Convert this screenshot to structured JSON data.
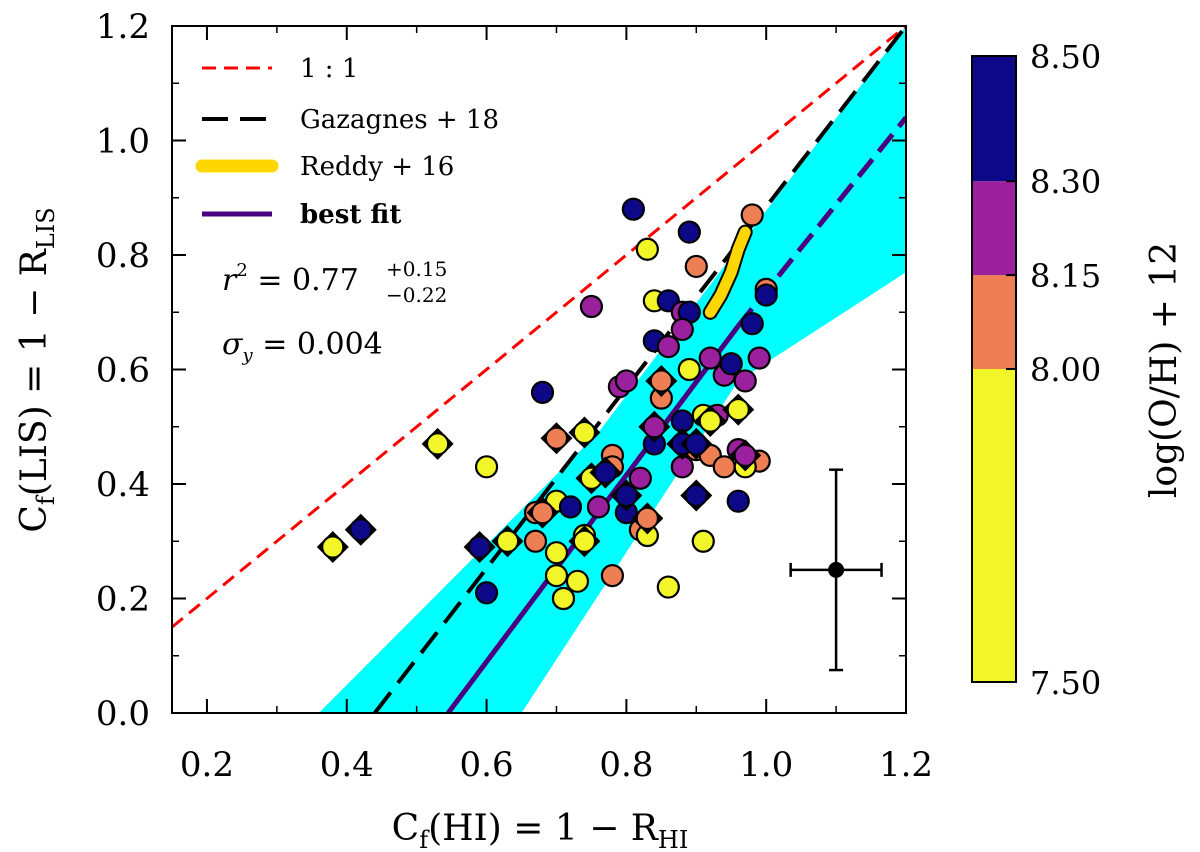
{
  "chart_data": {
    "type": "scatter",
    "xlabel": "C_f(HI) = 1 − R_HI",
    "ylabel": "C_f(LIS) = 1 − R_LIS",
    "xlim": [
      0.15,
      1.2
    ],
    "ylim": [
      0.0,
      1.2
    ],
    "xticks": [
      0.2,
      0.4,
      0.6,
      0.8,
      1.0,
      1.2
    ],
    "yticks": [
      0.0,
      0.2,
      0.4,
      0.6,
      0.8,
      1.0,
      1.2
    ],
    "xtick_labels": [
      "0.2",
      "0.4",
      "0.6",
      "0.8",
      "1.0",
      "1.2"
    ],
    "ytick_labels": [
      "0.0",
      "0.2",
      "0.4",
      "0.6",
      "0.8",
      "1.0",
      "1.2"
    ],
    "axis_label_parts": {
      "x": {
        "main": "C",
        "sub1": "f",
        "rest": "(HI) = 1 − R",
        "sub2": "HI"
      },
      "y": {
        "main": "C",
        "sub1": "f",
        "rest": "(LIS) = 1 − R",
        "sub2": "LIS"
      }
    },
    "legend": {
      "placement": "top-left",
      "entries": [
        {
          "label": "1 : 1",
          "style": "dashed",
          "color": "#ff0000"
        },
        {
          "label": "Gazagnes + 18",
          "style": "dashed",
          "color": "#000000"
        },
        {
          "label": "Reddy + 16",
          "style": "solid-thick",
          "color": "#ffd700"
        },
        {
          "label": "best fit",
          "style": "solid",
          "color": "#4b0082"
        }
      ]
    },
    "annotations": {
      "r2_prefix": "r",
      "r2_exp": "2",
      "r2_value": " = 0.77",
      "r2_plus": "+0.15",
      "r2_minus": "−0.22",
      "sigma_symbol": "σ",
      "sigma_sub": "y",
      "sigma_value": " = 0.004"
    },
    "lines": {
      "one_to_one": {
        "x": [
          0.15,
          1.2
        ],
        "y": [
          0.15,
          1.2
        ],
        "color": "#ff0000"
      },
      "gazagnes18": {
        "x": [
          0.44,
          1.2
        ],
        "y": [
          0.0,
          1.2
        ],
        "color": "#000000"
      },
      "best_fit": {
        "x": [
          0.545,
          0.96
        ],
        "y": [
          0.0,
          0.676
        ],
        "dashed_x": [
          0.96,
          1.2
        ],
        "dashed_y": [
          0.676,
          1.04
        ],
        "color": "#4b0082"
      },
      "confidence_band": {
        "color": "#00ffff",
        "upper": [
          [
            0.36,
            0.0
          ],
          [
            0.76,
            0.49
          ],
          [
            1.2,
            1.2
          ]
        ],
        "lower": [
          [
            1.2,
            0.77
          ],
          [
            0.96,
            0.58
          ],
          [
            0.65,
            0.0
          ]
        ]
      },
      "reddy16": {
        "x": [
          0.92,
          0.935,
          0.95,
          0.96,
          0.97
        ],
        "y": [
          0.7,
          0.73,
          0.77,
          0.81,
          0.84
        ],
        "color": "#ffd700"
      }
    },
    "error_bar": {
      "x": 1.1,
      "y": 0.25,
      "xerr": 0.065,
      "yerr": 0.175
    },
    "colorbar": {
      "label": "log(O/H) + 12",
      "tick_values": [
        7.5,
        8.0,
        8.15,
        8.3,
        8.5
      ],
      "tick_labels": [
        "7.50",
        "8.00",
        "8.15",
        "8.30",
        "8.50"
      ],
      "bins": [
        {
          "from": 7.5,
          "to": 8.0,
          "color": "#f2f527"
        },
        {
          "from": 8.0,
          "to": 8.15,
          "color": "#ee7f55"
        },
        {
          "from": 8.15,
          "to": 8.3,
          "color": "#9b209e"
        },
        {
          "from": 8.3,
          "to": 8.5,
          "color": "#0d0887"
        }
      ]
    },
    "series": [
      {
        "name": "circles",
        "marker": "circle",
        "points": [
          {
            "x": 0.81,
            "y": 0.88,
            "c": "#0d0887"
          },
          {
            "x": 0.89,
            "y": 0.84,
            "c": "#0d0887"
          },
          {
            "x": 0.98,
            "y": 0.87,
            "c": "#ee7f55"
          },
          {
            "x": 0.83,
            "y": 0.81,
            "c": "#f2f527"
          },
          {
            "x": 0.9,
            "y": 0.78,
            "c": "#ee7f55"
          },
          {
            "x": 0.75,
            "y": 0.71,
            "c": "#9b209e"
          },
          {
            "x": 0.84,
            "y": 0.72,
            "c": "#f2f527"
          },
          {
            "x": 0.86,
            "y": 0.72,
            "c": "#0d0887"
          },
          {
            "x": 0.88,
            "y": 0.7,
            "c": "#9b209e"
          },
          {
            "x": 0.89,
            "y": 0.7,
            "c": "#0d0887"
          },
          {
            "x": 1.0,
            "y": 0.74,
            "c": "#ee7f55"
          },
          {
            "x": 1.0,
            "y": 0.73,
            "c": "#0d0887"
          },
          {
            "x": 0.84,
            "y": 0.65,
            "c": "#0d0887"
          },
          {
            "x": 0.86,
            "y": 0.64,
            "c": "#9b209e"
          },
          {
            "x": 0.88,
            "y": 0.67,
            "c": "#9b209e"
          },
          {
            "x": 0.98,
            "y": 0.68,
            "c": "#0d0887"
          },
          {
            "x": 0.79,
            "y": 0.57,
            "c": "#9b209e"
          },
          {
            "x": 0.8,
            "y": 0.58,
            "c": "#9b209e"
          },
          {
            "x": 0.89,
            "y": 0.6,
            "c": "#f2f527"
          },
          {
            "x": 0.92,
            "y": 0.62,
            "c": "#9b209e"
          },
          {
            "x": 0.94,
            "y": 0.59,
            "c": "#9b209e"
          },
          {
            "x": 0.95,
            "y": 0.61,
            "c": "#0d0887"
          },
          {
            "x": 0.97,
            "y": 0.58,
            "c": "#9b209e"
          },
          {
            "x": 0.99,
            "y": 0.62,
            "c": "#9b209e"
          },
          {
            "x": 0.68,
            "y": 0.56,
            "c": "#0d0887"
          },
          {
            "x": 0.6,
            "y": 0.43,
            "c": "#f2f527"
          },
          {
            "x": 0.78,
            "y": 0.45,
            "c": "#ee7f55"
          },
          {
            "x": 0.78,
            "y": 0.43,
            "c": "#ee7f55"
          },
          {
            "x": 0.84,
            "y": 0.47,
            "c": "#0d0887"
          },
          {
            "x": 0.88,
            "y": 0.51,
            "c": "#0d0887"
          },
          {
            "x": 0.9,
            "y": 0.46,
            "c": "#ee7f55"
          },
          {
            "x": 0.91,
            "y": 0.52,
            "c": "#f2f527"
          },
          {
            "x": 0.93,
            "y": 0.52,
            "c": "#9b209e"
          },
          {
            "x": 0.96,
            "y": 0.46,
            "c": "#9b209e"
          },
          {
            "x": 0.92,
            "y": 0.45,
            "c": "#ee7f55"
          },
          {
            "x": 0.94,
            "y": 0.43,
            "c": "#ee7f55"
          },
          {
            "x": 0.99,
            "y": 0.44,
            "c": "#ee7f55"
          },
          {
            "x": 0.97,
            "y": 0.43,
            "c": "#f2f527"
          },
          {
            "x": 0.88,
            "y": 0.43,
            "c": "#9b209e"
          },
          {
            "x": 0.7,
            "y": 0.37,
            "c": "#f2f527"
          },
          {
            "x": 0.72,
            "y": 0.36,
            "c": "#0d0887"
          },
          {
            "x": 0.76,
            "y": 0.36,
            "c": "#9b209e"
          },
          {
            "x": 0.8,
            "y": 0.35,
            "c": "#0d0887"
          },
          {
            "x": 0.82,
            "y": 0.32,
            "c": "#ee7f55"
          },
          {
            "x": 0.83,
            "y": 0.31,
            "c": "#f2f527"
          },
          {
            "x": 0.96,
            "y": 0.37,
            "c": "#0d0887"
          },
          {
            "x": 0.59,
            "y": 0.29,
            "c": "#0d0887"
          },
          {
            "x": 0.63,
            "y": 0.3,
            "c": "#f2f527"
          },
          {
            "x": 0.67,
            "y": 0.3,
            "c": "#ee7f55"
          },
          {
            "x": 0.7,
            "y": 0.28,
            "c": "#f2f527"
          },
          {
            "x": 0.74,
            "y": 0.31,
            "c": "#f2f527"
          },
          {
            "x": 0.7,
            "y": 0.24,
            "c": "#f2f527"
          },
          {
            "x": 0.73,
            "y": 0.23,
            "c": "#f2f527"
          },
          {
            "x": 0.78,
            "y": 0.24,
            "c": "#ee7f55"
          },
          {
            "x": 0.71,
            "y": 0.2,
            "c": "#ee7f55"
          },
          {
            "x": 0.71,
            "y": 0.2,
            "c": "#f2f527"
          },
          {
            "x": 0.6,
            "y": 0.21,
            "c": "#0d0887"
          },
          {
            "x": 0.86,
            "y": 0.22,
            "c": "#f2f527"
          },
          {
            "x": 0.91,
            "y": 0.3,
            "c": "#f2f527"
          },
          {
            "x": 0.85,
            "y": 0.55,
            "c": "#ee7f55"
          },
          {
            "x": 0.82,
            "y": 0.41,
            "c": "#9b209e"
          },
          {
            "x": 0.67,
            "y": 0.35,
            "c": "#ee7f55"
          }
        ]
      },
      {
        "name": "diamonds",
        "marker": "diamond",
        "points": [
          {
            "x": 0.38,
            "y": 0.29,
            "c": "#f2f527"
          },
          {
            "x": 0.42,
            "y": 0.32,
            "c": "#0d0887"
          },
          {
            "x": 0.53,
            "y": 0.47,
            "c": "#f2f527"
          },
          {
            "x": 0.59,
            "y": 0.29,
            "c": "#0d0887"
          },
          {
            "x": 0.63,
            "y": 0.3,
            "c": "#f2f527"
          },
          {
            "x": 0.68,
            "y": 0.35,
            "c": "#ee7f55"
          },
          {
            "x": 0.7,
            "y": 0.48,
            "c": "#ee7f55"
          },
          {
            "x": 0.74,
            "y": 0.49,
            "c": "#f2f527"
          },
          {
            "x": 0.75,
            "y": 0.41,
            "c": "#f2f527"
          },
          {
            "x": 0.77,
            "y": 0.42,
            "c": "#0d0887"
          },
          {
            "x": 0.74,
            "y": 0.3,
            "c": "#f2f527"
          },
          {
            "x": 0.8,
            "y": 0.38,
            "c": "#0d0887"
          },
          {
            "x": 0.83,
            "y": 0.34,
            "c": "#ee7f55"
          },
          {
            "x": 0.84,
            "y": 0.5,
            "c": "#9b209e"
          },
          {
            "x": 0.85,
            "y": 0.58,
            "c": "#ee7f55"
          },
          {
            "x": 0.88,
            "y": 0.47,
            "c": "#0d0887"
          },
          {
            "x": 0.9,
            "y": 0.38,
            "c": "#0d0887"
          },
          {
            "x": 0.92,
            "y": 0.51,
            "c": "#f2f527"
          },
          {
            "x": 0.96,
            "y": 0.53,
            "c": "#f2f527"
          },
          {
            "x": 0.97,
            "y": 0.45,
            "c": "#9b209e"
          },
          {
            "x": 0.9,
            "y": 0.47,
            "c": "#0d0887"
          }
        ]
      }
    ]
  }
}
